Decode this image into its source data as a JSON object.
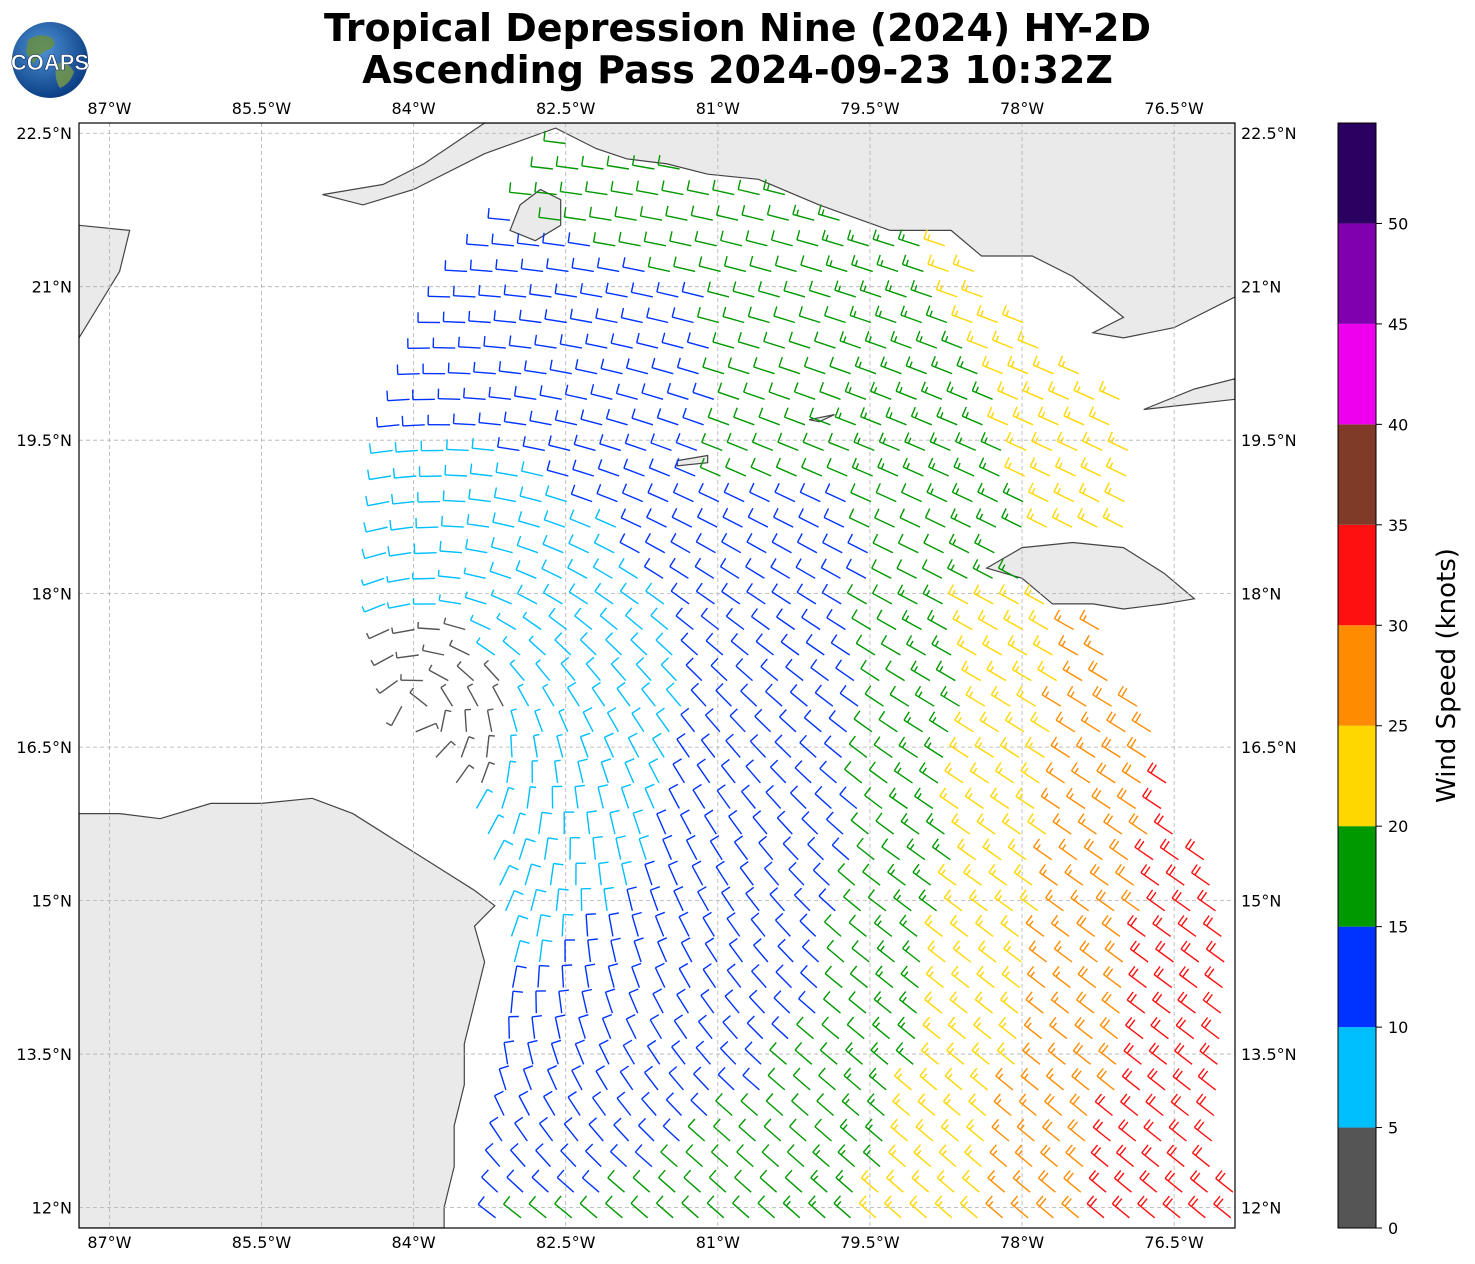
{
  "header": {
    "title_line1": "Tropical Depression Nine (2024) HY-2D",
    "title_line2": "Ascending Pass 2024-09-23 10:32Z",
    "logo_text": "COAPS"
  },
  "map": {
    "lon_range": [
      -87.3,
      -75.9
    ],
    "lat_range": [
      11.8,
      22.6
    ],
    "lon_ticks": [
      {
        "value": -87.0,
        "label": "87°W"
      },
      {
        "value": -85.5,
        "label": "85.5°W"
      },
      {
        "value": -84.0,
        "label": "84°W"
      },
      {
        "value": -82.5,
        "label": "82.5°W"
      },
      {
        "value": -81.0,
        "label": "81°W"
      },
      {
        "value": -79.5,
        "label": "79.5°W"
      },
      {
        "value": -78.0,
        "label": "78°W"
      },
      {
        "value": -76.5,
        "label": "76.5°W"
      }
    ],
    "lat_ticks": [
      {
        "value": 22.5,
        "label": "22.5°N"
      },
      {
        "value": 21.0,
        "label": "21°N"
      },
      {
        "value": 19.5,
        "label": "19.5°N"
      },
      {
        "value": 18.0,
        "label": "18°N"
      },
      {
        "value": 16.5,
        "label": "16.5°N"
      },
      {
        "value": 15.0,
        "label": "15°N"
      },
      {
        "value": 13.5,
        "label": "13.5°N"
      },
      {
        "value": 12.0,
        "label": "12°N"
      }
    ],
    "grid": true,
    "colors": {
      "coast": "#444444",
      "land_shade": "#d9d9d9",
      "grid": "#b0b0b0"
    },
    "land": [
      {
        "name": "central-america",
        "lonlat": [
          [
            -87.3,
            15.85
          ],
          [
            -86.9,
            15.85
          ],
          [
            -86.5,
            15.8
          ],
          [
            -86.0,
            15.95
          ],
          [
            -85.5,
            15.95
          ],
          [
            -85.0,
            16.0
          ],
          [
            -84.6,
            15.85
          ],
          [
            -84.2,
            15.6
          ],
          [
            -83.8,
            15.35
          ],
          [
            -83.4,
            15.1
          ],
          [
            -83.2,
            14.95
          ],
          [
            -83.4,
            14.75
          ],
          [
            -83.3,
            14.4
          ],
          [
            -83.4,
            14.0
          ],
          [
            -83.5,
            13.6
          ],
          [
            -83.5,
            13.2
          ],
          [
            -83.6,
            12.8
          ],
          [
            -83.6,
            12.4
          ],
          [
            -83.7,
            12.0
          ],
          [
            -83.7,
            11.8
          ],
          [
            -87.3,
            11.8
          ]
        ]
      },
      {
        "name": "cuba",
        "lonlat": [
          [
            -84.9,
            21.9
          ],
          [
            -84.3,
            22.0
          ],
          [
            -83.9,
            22.2
          ],
          [
            -83.3,
            22.6
          ],
          [
            -75.9,
            22.6
          ],
          [
            -75.9,
            20.9
          ],
          [
            -76.5,
            20.6
          ],
          [
            -77.0,
            20.5
          ],
          [
            -77.3,
            20.55
          ],
          [
            -77.0,
            20.7
          ],
          [
            -77.5,
            21.1
          ],
          [
            -77.9,
            21.3
          ],
          [
            -78.4,
            21.3
          ],
          [
            -78.7,
            21.55
          ],
          [
            -79.3,
            21.55
          ],
          [
            -80.0,
            21.8
          ],
          [
            -80.6,
            22.05
          ],
          [
            -81.1,
            22.1
          ],
          [
            -81.5,
            22.2
          ],
          [
            -81.9,
            22.25
          ],
          [
            -82.2,
            22.35
          ],
          [
            -82.6,
            22.55
          ],
          [
            -83.3,
            22.3
          ],
          [
            -84.0,
            21.95
          ],
          [
            -84.5,
            21.8
          ],
          [
            -84.9,
            21.9
          ]
        ]
      },
      {
        "name": "haiti",
        "lonlat": [
          [
            -75.9,
            19.9
          ],
          [
            -76.8,
            19.8
          ],
          [
            -76.3,
            20.0
          ],
          [
            -75.9,
            20.1
          ]
        ]
      },
      {
        "name": "jamaica",
        "lonlat": [
          [
            -78.35,
            18.25
          ],
          [
            -78.0,
            18.45
          ],
          [
            -77.5,
            18.5
          ],
          [
            -77.0,
            18.45
          ],
          [
            -76.6,
            18.2
          ],
          [
            -76.3,
            17.95
          ],
          [
            -76.6,
            17.9
          ],
          [
            -77.0,
            17.85
          ],
          [
            -77.3,
            17.9
          ],
          [
            -77.7,
            17.9
          ],
          [
            -78.0,
            18.15
          ],
          [
            -78.35,
            18.25
          ]
        ]
      },
      {
        "name": "isla-de-la-juventud",
        "lonlat": [
          [
            -82.95,
            21.8
          ],
          [
            -82.75,
            21.95
          ],
          [
            -82.55,
            21.85
          ],
          [
            -82.55,
            21.6
          ],
          [
            -82.8,
            21.45
          ],
          [
            -83.05,
            21.55
          ],
          [
            -82.95,
            21.8
          ]
        ]
      },
      {
        "name": "grand-cayman",
        "lonlat": [
          [
            -81.4,
            19.3
          ],
          [
            -81.1,
            19.35
          ],
          [
            -81.1,
            19.28
          ],
          [
            -81.4,
            19.25
          ]
        ]
      },
      {
        "name": "cayman-brac",
        "lonlat": [
          [
            -80.1,
            19.7
          ],
          [
            -79.85,
            19.75
          ],
          [
            -80.0,
            19.68
          ]
        ]
      },
      {
        "name": "isla-mujeres-coast",
        "lonlat": [
          [
            -87.3,
            21.6
          ],
          [
            -86.8,
            21.55
          ],
          [
            -86.9,
            21.15
          ],
          [
            -87.3,
            20.5
          ]
        ]
      }
    ]
  },
  "colorbar": {
    "title": "Wind Speed (knots)",
    "tick_labels": [
      "0",
      "5",
      "10",
      "15",
      "20",
      "25",
      "30",
      "35",
      "40",
      "45",
      "50"
    ],
    "bins": [
      {
        "min": 0,
        "max": 5,
        "color": "#555555"
      },
      {
        "min": 5,
        "max": 10,
        "color": "#00bfff"
      },
      {
        "min": 10,
        "max": 15,
        "color": "#0033ff"
      },
      {
        "min": 15,
        "max": 20,
        "color": "#009900"
      },
      {
        "min": 20,
        "max": 25,
        "color": "#ffd700"
      },
      {
        "min": 25,
        "max": 30,
        "color": "#ff8c00"
      },
      {
        "min": 30,
        "max": 35,
        "color": "#ff1010"
      },
      {
        "min": 35,
        "max": 40,
        "color": "#7f3a28"
      },
      {
        "min": 40,
        "max": 45,
        "color": "#ee00ee"
      },
      {
        "min": 45,
        "max": 50,
        "color": "#8000b0"
      },
      {
        "min": 50,
        "max": 55,
        "color": "#2a0060"
      }
    ]
  },
  "wind_field": {
    "units": "knots",
    "center_lon": -84.0,
    "center_lat": 16.8,
    "swath_lat_range": [
      11.8,
      22.4
    ],
    "swath_west_edge": [
      [
        22.3,
        -82.5
      ],
      [
        21.0,
        -83.6
      ],
      [
        19.5,
        -84.2
      ],
      [
        18.0,
        -84.3
      ],
      [
        16.8,
        -84.1
      ],
      [
        15.8,
        -83.3
      ],
      [
        14.5,
        -83.0
      ],
      [
        13.0,
        -83.1
      ],
      [
        11.8,
        -83.2
      ]
    ],
    "swath_east_edge": [
      [
        22.4,
        -79.5
      ],
      [
        21.0,
        -78.3
      ],
      [
        19.8,
        -76.9
      ],
      [
        17.5,
        -77.1
      ],
      [
        15.0,
        -76.0
      ],
      [
        11.8,
        -75.9
      ]
    ],
    "grid_step_deg": 0.25
  }
}
